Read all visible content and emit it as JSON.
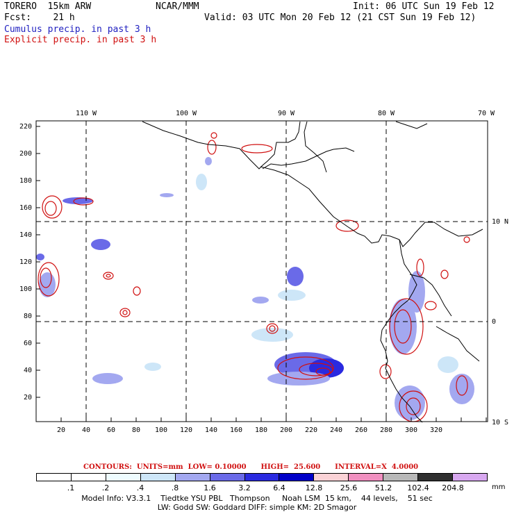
{
  "header": {
    "model": "TORERO  15km ARW",
    "org": "NCAR/MMM",
    "init": "Init: 06 UTC Sun 19 Feb 12",
    "fcst": "Fcst:    21 h",
    "valid": "Valid: 03 UTC Mon 20 Feb 12 (21 CST Sun 19 Feb 12)",
    "cumulus": "Cumulus precip. in past 3 h",
    "explicit": "Explicit precip. in past 3 h"
  },
  "axes": {
    "top_lon": [
      "110 W",
      "100 W",
      "90 W",
      "80 W",
      "70 W"
    ],
    "right_lat": [
      "10 N",
      "0",
      "10 S"
    ],
    "x_ticks": [
      "20",
      "40",
      "60",
      "80",
      "100",
      "120",
      "140",
      "160",
      "180",
      "200",
      "220",
      "240",
      "260",
      "280",
      "300",
      "320"
    ],
    "y_ticks": [
      "220",
      "200",
      "180",
      "160",
      "140",
      "120",
      "100",
      "80",
      "60",
      "40",
      "20"
    ]
  },
  "contours": {
    "text": "CONTOURS:  UNITS=mm  LOW= 0.10000      HIGH=  25.600      INTERVAL=X  4.0000"
  },
  "colorbar": {
    "labels": [
      ".1",
      ".2",
      ".4",
      ".8",
      "1.6",
      "3.2",
      "6.4",
      "12.8",
      "25.6",
      "51.2",
      "102.4",
      "204.8"
    ],
    "unit": "mm",
    "colors": [
      "#ffffff",
      "#ffffff",
      "#ffffff",
      "#eefcff",
      "#cde6f8",
      "#a3a8f0",
      "#6a6ae8",
      "#2a2ae0",
      "#0000c8",
      "#fad2d6",
      "#f090c0",
      "#b8b8b8",
      "#303030",
      "#d8a8f0"
    ]
  },
  "footer": {
    "line1": "Model Info: V3.3.1    Tiedtke YSU PBL   Thompson     Noah LSM  15 km,    44 levels,    51 sec",
    "line2": "LW: Godd SW: Goddard DIFF: simple KM: 2D Smagor"
  }
}
